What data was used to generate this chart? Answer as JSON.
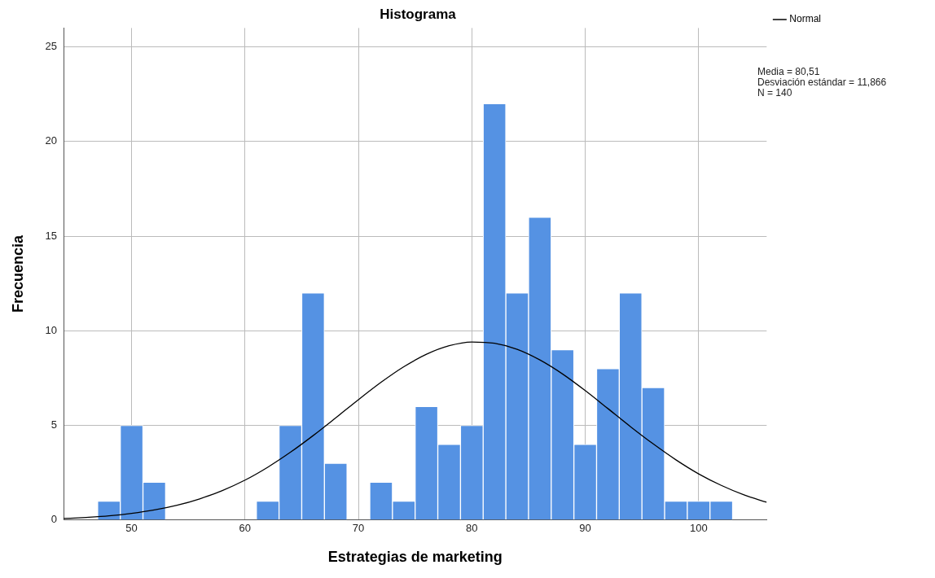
{
  "chart_data": {
    "type": "histogram",
    "title": "Histograma",
    "xlabel": "Estrategias de marketing",
    "ylabel": "Frecuencia",
    "series": [
      {
        "type": "histogram",
        "color": "#5592e3",
        "bins": [
          47,
          49,
          51,
          53,
          55,
          57,
          59,
          61,
          63,
          65,
          67,
          69,
          71,
          73,
          75,
          77,
          79,
          81,
          83,
          85,
          87,
          89,
          91,
          93,
          95,
          97,
          99,
          101,
          103
        ],
        "values": [
          1,
          5,
          2,
          0,
          0,
          0,
          0,
          1,
          5,
          12,
          3,
          0,
          2,
          1,
          6,
          4,
          5,
          22,
          12,
          16,
          9,
          4,
          8,
          12,
          7,
          1,
          1,
          1
        ]
      },
      {
        "type": "line",
        "name": "Normal",
        "color": "#000000",
        "x": [
          44,
          46,
          48,
          50,
          52,
          54,
          56,
          58,
          60,
          62,
          64,
          66,
          68,
          70,
          72,
          74,
          76,
          78,
          80,
          82,
          84,
          86,
          88,
          90,
          92,
          94,
          96,
          98,
          100,
          102,
          104,
          106
        ],
        "values": [
          0.08,
          0.14,
          0.22,
          0.35,
          0.53,
          0.78,
          1.12,
          1.56,
          2.11,
          2.79,
          3.58,
          4.46,
          5.4,
          6.36,
          7.28,
          8.1,
          8.76,
          9.21,
          9.41,
          9.34,
          9.02,
          8.46,
          7.72,
          6.84,
          5.89,
          4.93,
          4.02,
          3.18,
          2.44,
          1.83,
          1.33,
          0.94
        ]
      }
    ],
    "xlim": [
      44,
      106
    ],
    "xticks": [
      50,
      60,
      70,
      80,
      90,
      100
    ],
    "ylim": [
      0,
      26
    ],
    "yticks": [
      0,
      5,
      10,
      15,
      20,
      25
    ],
    "grid": true,
    "legend": "top right",
    "annotations": [
      "Media = 80,51",
      "Desviación estándar = 11,866",
      "N = 140"
    ]
  }
}
